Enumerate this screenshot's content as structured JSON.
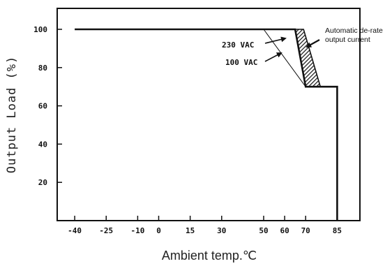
{
  "chart_data": {
    "type": "line",
    "title": "",
    "xlabel": "Ambient temp.℃",
    "ylabel": "Output Load (%)",
    "xlim": [
      -40,
      95
    ],
    "ylim": [
      0,
      112
    ],
    "x_ticks": [
      -40,
      -25,
      -10,
      0,
      15,
      30,
      50,
      60,
      70,
      85
    ],
    "y_ticks": [
      20,
      40,
      60,
      80,
      100
    ],
    "grid": false,
    "legend": "none",
    "series": [
      {
        "name": "230 VAC",
        "points": [
          [
            -40,
            100
          ],
          [
            65,
            100
          ],
          [
            70,
            70
          ],
          [
            85,
            70
          ],
          [
            85,
            0
          ]
        ]
      },
      {
        "name": "100 VAC",
        "points": [
          [
            50,
            100
          ],
          [
            70,
            70
          ]
        ]
      }
    ],
    "hatched_region": {
      "label": "Automatic de-rate output current",
      "polygon": [
        [
          65,
          100
        ],
        [
          69,
          100
        ],
        [
          77,
          70
        ],
        [
          70,
          70
        ]
      ]
    },
    "annotations": [
      {
        "text": "230 VAC"
      },
      {
        "text": "100 VAC"
      },
      {
        "text_lines": [
          "Automatic de-rate",
          "output current"
        ]
      }
    ]
  }
}
